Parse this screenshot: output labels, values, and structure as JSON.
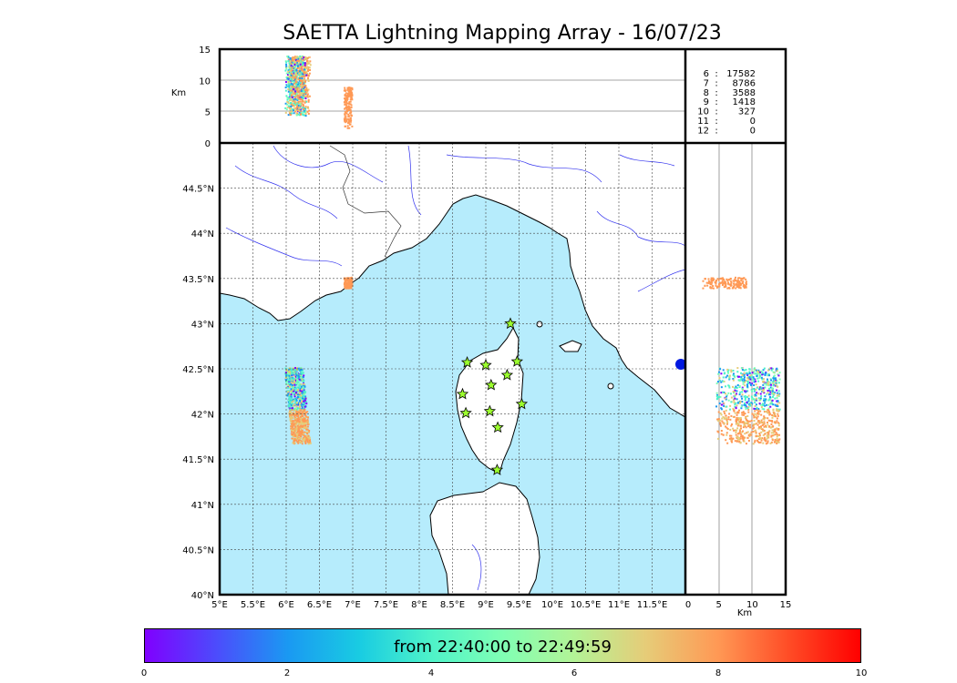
{
  "title": "SAETTA Lightning Mapping Array - 16/07/23",
  "colorbar": {
    "label": "from 22:40:00 to 22:49:59",
    "ticks": [
      "0",
      "2",
      "4",
      "6",
      "8",
      "10"
    ],
    "range": [
      0,
      10
    ],
    "colors": [
      "#8000ff",
      "#1a99f2",
      "#80ffb4",
      "#ff9955",
      "#ff0000"
    ]
  },
  "axes": {
    "lon_ticks": [
      "5°E",
      "5.5°E",
      "6°E",
      "6.5°E",
      "7°E",
      "7.5°E",
      "8°E",
      "8.5°E",
      "9°E",
      "9.5°E",
      "10°E",
      "10.5°E",
      "11°E",
      "11.5°E"
    ],
    "lat_ticks": [
      "40°N",
      "40.5°N",
      "41°N",
      "41.5°N",
      "42°N",
      "42.5°N",
      "43°N",
      "43.5°N",
      "44°N",
      "44.5°N"
    ],
    "alt_ticks": [
      "0",
      "5",
      "10",
      "15"
    ],
    "alt_unit": "Km",
    "lon_range": [
      5,
      12
    ],
    "lat_range": [
      40,
      45
    ],
    "alt_range": [
      0,
      15
    ]
  },
  "stations_table": [
    {
      "n": "6",
      "count": "17582",
      "color": "#000000"
    },
    {
      "n": "7",
      "count": "8786",
      "color": "#ff0000"
    },
    {
      "n": "8",
      "count": "3588",
      "color": "#000000"
    },
    {
      "n": "9",
      "count": "1418",
      "color": "#000000"
    },
    {
      "n": "10",
      "count": "327",
      "color": "#000000"
    },
    {
      "n": "11",
      "count": "0",
      "color": "#000000"
    },
    {
      "n": "12",
      "count": "0",
      "color": "#000000"
    }
  ],
  "stations": [
    {
      "lon": 9.37,
      "lat": 43.0
    },
    {
      "lon": 8.72,
      "lat": 42.57
    },
    {
      "lon": 9.0,
      "lat": 42.54
    },
    {
      "lon": 9.47,
      "lat": 42.58
    },
    {
      "lon": 9.32,
      "lat": 42.43
    },
    {
      "lon": 9.08,
      "lat": 42.32
    },
    {
      "lon": 8.65,
      "lat": 42.22
    },
    {
      "lon": 9.54,
      "lat": 42.11
    },
    {
      "lon": 8.7,
      "lat": 42.01
    },
    {
      "lon": 9.06,
      "lat": 42.03
    },
    {
      "lon": 9.18,
      "lat": 41.85
    },
    {
      "lon": 9.17,
      "lat": 41.38
    }
  ],
  "lightning_clusters": [
    {
      "lon_min": 5.87,
      "lon_max": 6.33,
      "lat_min": 41.68,
      "lat_max": 42.52,
      "alt_min": 4.5,
      "alt_max": 14
    },
    {
      "lon_min": 6.82,
      "lon_max": 7.02,
      "lat_min": 43.4,
      "lat_max": 43.52,
      "alt_min": 2.5,
      "alt_max": 9
    }
  ]
}
